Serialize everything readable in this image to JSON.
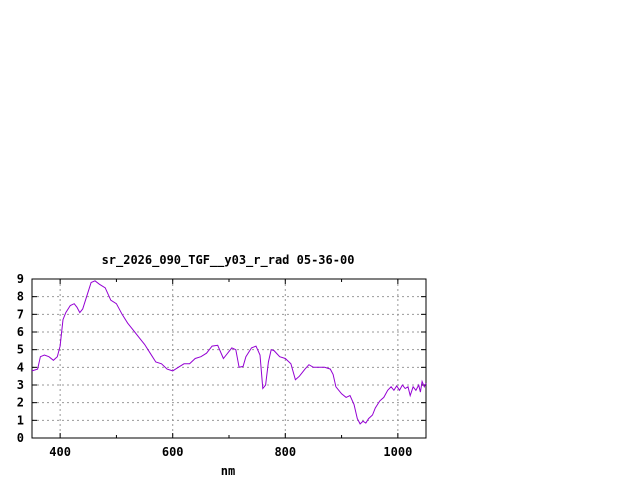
{
  "chart_data": {
    "type": "line",
    "title": "sr_2026_090_TGF__y03_r_rad 05-36-00",
    "xlabel": "nm",
    "ylabel": "",
    "xlim": [
      350,
      1050
    ],
    "ylim": [
      0,
      9
    ],
    "xticks": [
      400,
      600,
      800,
      1000
    ],
    "yticks": [
      0,
      1,
      2,
      3,
      4,
      5,
      6,
      7,
      8,
      9
    ],
    "grid": true,
    "line_color": "#9400d3",
    "series": [
      {
        "points": [
          [
            350,
            3.8
          ],
          [
            360,
            3.9
          ],
          [
            365,
            4.6
          ],
          [
            372,
            4.7
          ],
          [
            380,
            4.6
          ],
          [
            388,
            4.4
          ],
          [
            395,
            4.6
          ],
          [
            400,
            5.2
          ],
          [
            405,
            6.7
          ],
          [
            410,
            7.1
          ],
          [
            418,
            7.5
          ],
          [
            425,
            7.6
          ],
          [
            430,
            7.4
          ],
          [
            435,
            7.1
          ],
          [
            440,
            7.3
          ],
          [
            447,
            8.0
          ],
          [
            455,
            8.8
          ],
          [
            462,
            8.9
          ],
          [
            470,
            8.7
          ],
          [
            480,
            8.5
          ],
          [
            490,
            7.8
          ],
          [
            500,
            7.6
          ],
          [
            510,
            7.0
          ],
          [
            520,
            6.5
          ],
          [
            530,
            6.1
          ],
          [
            540,
            5.7
          ],
          [
            550,
            5.3
          ],
          [
            560,
            4.8
          ],
          [
            570,
            4.3
          ],
          [
            580,
            4.2
          ],
          [
            590,
            3.9
          ],
          [
            600,
            3.8
          ],
          [
            610,
            4.0
          ],
          [
            620,
            4.2
          ],
          [
            630,
            4.2
          ],
          [
            640,
            4.5
          ],
          [
            650,
            4.6
          ],
          [
            660,
            4.8
          ],
          [
            670,
            5.2
          ],
          [
            680,
            5.25
          ],
          [
            690,
            4.5
          ],
          [
            695,
            4.7
          ],
          [
            705,
            5.1
          ],
          [
            712,
            5.0
          ],
          [
            718,
            4.0
          ],
          [
            725,
            4.05
          ],
          [
            730,
            4.6
          ],
          [
            740,
            5.1
          ],
          [
            748,
            5.2
          ],
          [
            755,
            4.7
          ],
          [
            760,
            2.8
          ],
          [
            765,
            3.0
          ],
          [
            770,
            4.3
          ],
          [
            775,
            5.0
          ],
          [
            780,
            4.95
          ],
          [
            790,
            4.6
          ],
          [
            800,
            4.5
          ],
          [
            810,
            4.2
          ],
          [
            818,
            3.3
          ],
          [
            825,
            3.5
          ],
          [
            835,
            3.9
          ],
          [
            842,
            4.15
          ],
          [
            850,
            4.0
          ],
          [
            860,
            4.0
          ],
          [
            870,
            4.0
          ],
          [
            880,
            3.9
          ],
          [
            885,
            3.6
          ],
          [
            890,
            2.9
          ],
          [
            900,
            2.5
          ],
          [
            908,
            2.3
          ],
          [
            915,
            2.4
          ],
          [
            922,
            1.9
          ],
          [
            928,
            1.1
          ],
          [
            933,
            0.8
          ],
          [
            938,
            0.95
          ],
          [
            943,
            0.85
          ],
          [
            948,
            1.1
          ],
          [
            955,
            1.3
          ],
          [
            960,
            1.7
          ],
          [
            968,
            2.1
          ],
          [
            975,
            2.3
          ],
          [
            982,
            2.7
          ],
          [
            988,
            2.9
          ],
          [
            993,
            2.7
          ],
          [
            998,
            2.95
          ],
          [
            1003,
            2.7
          ],
          [
            1008,
            3.0
          ],
          [
            1013,
            2.8
          ],
          [
            1018,
            2.9
          ],
          [
            1022,
            2.4
          ],
          [
            1027,
            2.9
          ],
          [
            1032,
            2.7
          ],
          [
            1037,
            3.0
          ],
          [
            1040,
            2.6
          ],
          [
            1043,
            3.2
          ],
          [
            1047,
            2.9
          ],
          [
            1050,
            3.1
          ]
        ]
      }
    ]
  }
}
